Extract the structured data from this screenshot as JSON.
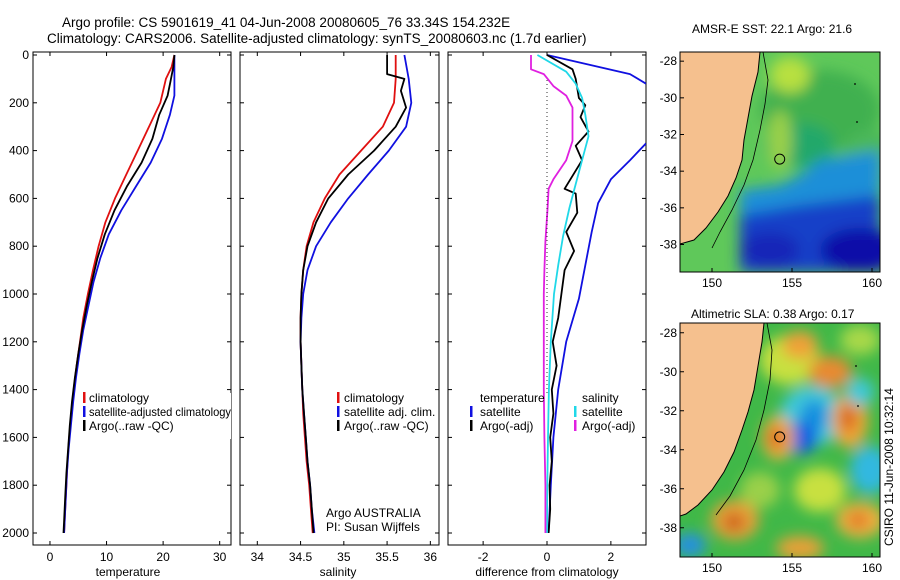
{
  "header": {
    "line1": "Argo profile: CS 5901619_41 04-Jun-2008 20080605_76 33.34S 154.232E",
    "line2": "Climatology: CARS2006. Satellite-adjusted climatology: synTS_20080603.nc (1.7d earlier)"
  },
  "depth_ticks": [
    "0",
    "200",
    "400",
    "600",
    "800",
    "1000",
    "1200",
    "1400",
    "1600",
    "1800",
    "2000"
  ],
  "credit": {
    "line1": "Argo AUSTRALIA",
    "line2": "PI: Susan Wijffels"
  },
  "side_stamp": "CSIRO 11-Jun-2008 10:32:14",
  "colors": {
    "climatology": "#e01010",
    "satellite": "#1010e0",
    "argo": "#000000",
    "sal_satellite": "#20d8e8",
    "sal_argo": "#e020e0"
  },
  "chart_data": [
    {
      "type": "line",
      "xlabel": "temperature",
      "ylabel": "",
      "xlim": [
        -3,
        32
      ],
      "ylim": [
        2000,
        0
      ],
      "xticks": [
        "0",
        "10",
        "20",
        "30"
      ],
      "legend": [
        "climatology",
        "satellite-adjusted climatology",
        "Argo(..raw -QC)"
      ],
      "legend_placement": "lower-center",
      "series": [
        {
          "name": "climatology",
          "color": "#e01010",
          "points": [
            [
              22,
              0
            ],
            [
              21.5,
              50
            ],
            [
              20.5,
              100
            ],
            [
              19.5,
              200
            ],
            [
              17.5,
              300
            ],
            [
              15.5,
              400
            ],
            [
              13.5,
              500
            ],
            [
              11.5,
              600
            ],
            [
              9.8,
              700
            ],
            [
              8.6,
              800
            ],
            [
              7.6,
              900
            ],
            [
              6.7,
              1000
            ],
            [
              5.9,
              1100
            ],
            [
              5.3,
              1200
            ],
            [
              4.7,
              1300
            ],
            [
              4.2,
              1400
            ],
            [
              3.8,
              1500
            ],
            [
              3.4,
              1600
            ],
            [
              3.1,
              1700
            ],
            [
              2.9,
              1800
            ],
            [
              2.7,
              1900
            ],
            [
              2.5,
              2000
            ]
          ]
        },
        {
          "name": "satellite-adjusted climatology",
          "color": "#1010e0",
          "points": [
            [
              22,
              0
            ],
            [
              22,
              100
            ],
            [
              22,
              170
            ],
            [
              21.2,
              250
            ],
            [
              19.8,
              350
            ],
            [
              17.8,
              450
            ],
            [
              15.2,
              550
            ],
            [
              12.6,
              650
            ],
            [
              10.4,
              750
            ],
            [
              8.9,
              850
            ],
            [
              7.7,
              950
            ],
            [
              6.8,
              1050
            ],
            [
              5.9,
              1150
            ],
            [
              5.2,
              1250
            ],
            [
              4.6,
              1350
            ],
            [
              4.1,
              1450
            ],
            [
              3.7,
              1550
            ],
            [
              3.3,
              1650
            ],
            [
              3.0,
              1750
            ],
            [
              2.8,
              1850
            ],
            [
              2.5,
              2000
            ]
          ]
        },
        {
          "name": "Argo(..raw -QC)",
          "color": "#000000",
          "points": [
            [
              22,
              0
            ],
            [
              21.8,
              50
            ],
            [
              21.3,
              110
            ],
            [
              20.8,
              170
            ],
            [
              19.3,
              250
            ],
            [
              18.1,
              350
            ],
            [
              16.2,
              450
            ],
            [
              13.6,
              550
            ],
            [
              11.4,
              650
            ],
            [
              9.7,
              750
            ],
            [
              8.4,
              850
            ],
            [
              7.4,
              950
            ],
            [
              6.5,
              1050
            ],
            [
              5.7,
              1150
            ],
            [
              5.0,
              1250
            ],
            [
              4.4,
              1350
            ],
            [
              3.9,
              1450
            ],
            [
              3.5,
              1550
            ],
            [
              3.2,
              1650
            ],
            [
              2.9,
              1750
            ],
            [
              2.7,
              1850
            ],
            [
              2.5,
              1950
            ],
            [
              2.4,
              2000
            ]
          ]
        }
      ]
    },
    {
      "type": "line",
      "xlabel": "salinity",
      "ylabel": "",
      "xlim": [
        33.8,
        36.1
      ],
      "ylim": [
        2000,
        0
      ],
      "xticks": [
        "34",
        "34.5",
        "35",
        "35.5",
        "36"
      ],
      "legend": [
        "climatology",
        "satellite adj. clim.",
        "Argo(..raw -QC)"
      ],
      "legend_placement": "lower-right",
      "series": [
        {
          "name": "climatology",
          "color": "#e01010",
          "points": [
            [
              35.6,
              0
            ],
            [
              35.6,
              100
            ],
            [
              35.58,
              200
            ],
            [
              35.45,
              300
            ],
            [
              35.2,
              400
            ],
            [
              34.95,
              500
            ],
            [
              34.78,
              600
            ],
            [
              34.65,
              700
            ],
            [
              34.57,
              800
            ],
            [
              34.53,
              900
            ],
            [
              34.51,
              1000
            ],
            [
              34.5,
              1100
            ],
            [
              34.5,
              1200
            ],
            [
              34.51,
              1300
            ],
            [
              34.52,
              1400
            ],
            [
              34.53,
              1500
            ],
            [
              34.55,
              1600
            ],
            [
              34.57,
              1700
            ],
            [
              34.6,
              1800
            ],
            [
              34.62,
              1900
            ],
            [
              34.64,
              2000
            ]
          ]
        },
        {
          "name": "satellite adj. clim.",
          "color": "#1010e0",
          "points": [
            [
              35.7,
              0
            ],
            [
              35.75,
              100
            ],
            [
              35.78,
              200
            ],
            [
              35.72,
              300
            ],
            [
              35.52,
              400
            ],
            [
              35.28,
              500
            ],
            [
              35.05,
              600
            ],
            [
              34.85,
              700
            ],
            [
              34.68,
              800
            ],
            [
              34.58,
              900
            ],
            [
              34.53,
              1000
            ],
            [
              34.51,
              1100
            ],
            [
              34.5,
              1200
            ],
            [
              34.51,
              1300
            ],
            [
              34.52,
              1400
            ],
            [
              34.54,
              1500
            ],
            [
              34.56,
              1600
            ],
            [
              34.58,
              1700
            ],
            [
              34.61,
              1800
            ],
            [
              34.63,
              1900
            ],
            [
              34.66,
              2000
            ]
          ]
        },
        {
          "name": "Argo(..raw -QC)",
          "color": "#000000",
          "points": [
            [
              35.5,
              0
            ],
            [
              35.5,
              80
            ],
            [
              35.7,
              100
            ],
            [
              35.66,
              150
            ],
            [
              35.72,
              220
            ],
            [
              35.6,
              300
            ],
            [
              35.35,
              400
            ],
            [
              35.05,
              500
            ],
            [
              34.82,
              600
            ],
            [
              34.68,
              700
            ],
            [
              34.58,
              800
            ],
            [
              34.53,
              900
            ],
            [
              34.51,
              1000
            ],
            [
              34.5,
              1100
            ],
            [
              34.5,
              1200
            ],
            [
              34.51,
              1300
            ],
            [
              34.52,
              1400
            ],
            [
              34.54,
              1500
            ],
            [
              34.56,
              1600
            ],
            [
              34.58,
              1700
            ],
            [
              34.61,
              1800
            ],
            [
              34.63,
              1900
            ],
            [
              34.65,
              2000
            ]
          ]
        }
      ]
    },
    {
      "type": "line",
      "xlabel": "difference from climatology",
      "ylabel": "",
      "xlim": [
        -3.1,
        3.1
      ],
      "ylim": [
        2000,
        0
      ],
      "xticks": [
        "-2",
        "0",
        "2"
      ],
      "legend_groups": [
        {
          "title": "temperature",
          "entries": [
            "satellite",
            "Argo(-adj)"
          ]
        },
        {
          "title": "salinity",
          "entries": [
            "satellite",
            "Argo(-adj)"
          ]
        }
      ],
      "legend_placement": "lower-center",
      "series": [
        {
          "name": "temperature satellite",
          "color": "#1010e0",
          "points": [
            [
              0,
              0
            ],
            [
              2.6,
              80
            ],
            [
              3.1,
              120
            ]
          ]
        },
        {
          "name": "temperature satellite (lower)",
          "color": "#1010e0",
          "points": [
            [
              3.1,
              370
            ],
            [
              2.6,
              440
            ],
            [
              2.0,
              520
            ],
            [
              1.6,
              620
            ],
            [
              1.4,
              740
            ],
            [
              1.2,
              880
            ],
            [
              1.0,
              1020
            ],
            [
              0.6,
              1200
            ],
            [
              0.35,
              1400
            ],
            [
              0.2,
              1600
            ],
            [
              0.12,
              1800
            ],
            [
              0.05,
              2000
            ]
          ]
        },
        {
          "name": "temperature Argo(-adj)",
          "color": "#000000",
          "points": [
            [
              0,
              0
            ],
            [
              0.8,
              60
            ],
            [
              0.9,
              100
            ],
            [
              1.0,
              180
            ],
            [
              1.2,
              210
            ],
            [
              1.05,
              260
            ],
            [
              1.3,
              320
            ],
            [
              0.9,
              380
            ],
            [
              1.1,
              440
            ],
            [
              0.55,
              560
            ],
            [
              0.9,
              580
            ],
            [
              0.95,
              660
            ],
            [
              0.6,
              740
            ],
            [
              0.85,
              820
            ],
            [
              0.55,
              900
            ],
            [
              0.45,
              1000
            ],
            [
              0.35,
              1100
            ],
            [
              0.18,
              1200
            ],
            [
              0.3,
              1300
            ],
            [
              0.15,
              1400
            ],
            [
              0.2,
              1500
            ],
            [
              0.1,
              1600
            ],
            [
              0.15,
              1700
            ],
            [
              0.08,
              1800
            ],
            [
              0.1,
              1900
            ],
            [
              0.05,
              2000
            ]
          ]
        },
        {
          "name": "salinity satellite",
          "color": "#20d8e8",
          "points": [
            [
              -0.3,
              0
            ],
            [
              0.6,
              70
            ],
            [
              0.9,
              120
            ],
            [
              1.1,
              180
            ],
            [
              1.2,
              250
            ],
            [
              1.3,
              340
            ],
            [
              1.1,
              440
            ],
            [
              0.9,
              540
            ],
            [
              0.7,
              640
            ],
            [
              0.5,
              760
            ],
            [
              0.35,
              880
            ],
            [
              0.22,
              1000
            ],
            [
              0.12,
              1200
            ],
            [
              0.06,
              1400
            ],
            [
              0.03,
              1600
            ],
            [
              0.01,
              1800
            ],
            [
              0,
              2000
            ]
          ]
        },
        {
          "name": "salinity Argo(-adj)",
          "color": "#e020e0",
          "points": [
            [
              -0.5,
              0
            ],
            [
              -0.5,
              60
            ],
            [
              -0.1,
              80
            ],
            [
              0.2,
              130
            ],
            [
              0.6,
              170
            ],
            [
              0.8,
              220
            ],
            [
              0.8,
              290
            ],
            [
              0.8,
              360
            ],
            [
              0.6,
              440
            ],
            [
              0.2,
              520
            ],
            [
              0.05,
              560
            ],
            [
              0.02,
              640
            ],
            [
              -0.05,
              780
            ],
            [
              -0.08,
              900
            ],
            [
              -0.1,
              1000
            ],
            [
              -0.1,
              1200
            ],
            [
              -0.1,
              1400
            ],
            [
              -0.08,
              1600
            ],
            [
              -0.05,
              1800
            ],
            [
              -0.05,
              2000
            ]
          ]
        }
      ]
    },
    {
      "type": "heatmap",
      "title": "AMSR-E SST: 22.1 Argo: 21.6",
      "xlabel": "",
      "ylabel": "",
      "xlim": [
        148,
        160.5
      ],
      "ylim": [
        -39.5,
        -27.5
      ],
      "xticks": [
        "150",
        "155",
        "160"
      ],
      "yticks": [
        "-28",
        "-30",
        "-32",
        "-34",
        "-36",
        "-38"
      ],
      "profile_position": [
        154.232,
        -33.34
      ]
    },
    {
      "type": "heatmap",
      "title": "Altimetric SLA: 0.38 Argo: 0.17",
      "xlabel": "",
      "ylabel": "",
      "xlim": [
        148,
        160.5
      ],
      "ylim": [
        -39.5,
        -27.5
      ],
      "xticks": [
        "150",
        "155",
        "160"
      ],
      "yticks": [
        "-28",
        "-30",
        "-32",
        "-34",
        "-36",
        "-38"
      ],
      "profile_position": [
        154.232,
        -33.34
      ]
    }
  ]
}
